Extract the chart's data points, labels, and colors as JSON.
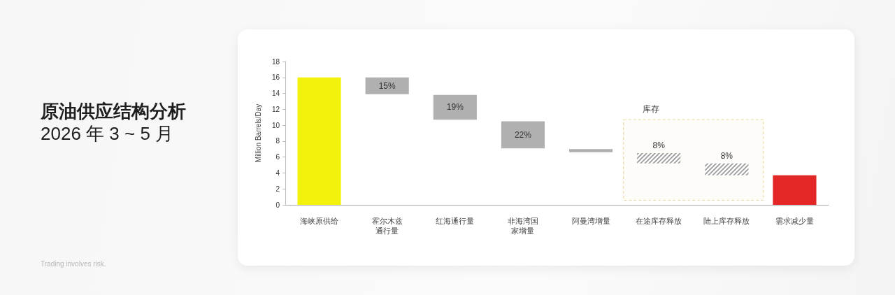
{
  "chart_data": {
    "type": "bar",
    "title": "原油供应结构分析",
    "subtitle": "2026 年 3 ~ 5 月",
    "ylabel": "Million Barrels/Day",
    "categories": [
      "海峡原供给",
      "霍尔木兹通行量",
      "红海通行量",
      "非海湾国家增量",
      "阿曼湾增量",
      "在途库存释放",
      "陆上库存释放",
      "需求减少量"
    ],
    "values": [
      16,
      2.1,
      3.1,
      3.4,
      0.4,
      1.3,
      1.5,
      3.7
    ],
    "base": [
      0,
      13.9,
      10.7,
      7.1,
      6.6,
      5.2,
      3.7,
      0
    ],
    "colors": [
      "#f2f20d",
      "#b0b0b0",
      "#b0b0b0",
      "#b0b0b0",
      "#b0b0b0",
      "#9a9a9a",
      "#9a9a9a",
      "#e32626"
    ],
    "ylim": [
      0,
      18
    ],
    "yticks": [
      0,
      2,
      4,
      6,
      8,
      10,
      12,
      14,
      16,
      18
    ],
    "bands": [
      {
        "axis": "x",
        "from": "在途库存释放",
        "to": "陆上库存释放",
        "label": "库存",
        "color": "#e8d89a"
      }
    ],
    "annotations": [
      {
        "text": "15%",
        "x": "霍尔木兹通行量",
        "y": 16
      },
      {
        "text": "19%",
        "x": "红海通行量",
        "y": 13.8
      },
      {
        "text": "22%",
        "x": "非海湾国家增量",
        "y": 10.5
      },
      {
        "text": "8%",
        "x": "在途库存释放",
        "y": 6.5
      },
      {
        "text": "8%",
        "x": "陆上库存释放",
        "y": 5.2
      },
      "Trading involves risk."
    ]
  }
}
